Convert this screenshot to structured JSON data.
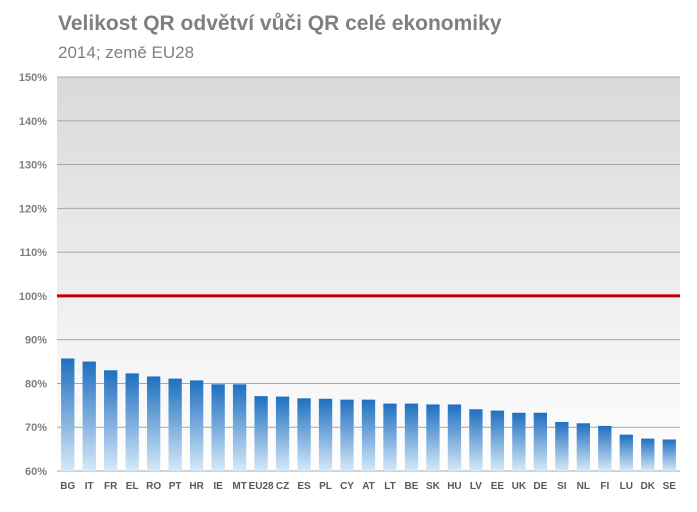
{
  "chart_data": {
    "type": "bar",
    "title": "Velikost QR odvětví vůči QR celé ekonomiky",
    "subtitle": "2014; země EU28",
    "xlabel": "",
    "ylabel": "",
    "categories": [
      "BG",
      "IT",
      "FR",
      "EL",
      "RO",
      "PT",
      "HR",
      "IE",
      "MT",
      "EU28",
      "CZ",
      "ES",
      "PL",
      "CY",
      "AT",
      "LT",
      "BE",
      "SK",
      "HU",
      "LV",
      "EE",
      "UK",
      "DE",
      "SI",
      "NL",
      "FI",
      "LU",
      "DK",
      "SE"
    ],
    "values": [
      85.7,
      85.0,
      83.0,
      82.3,
      81.6,
      81.1,
      80.7,
      79.8,
      79.8,
      77.1,
      77.0,
      76.6,
      76.5,
      76.3,
      76.3,
      75.4,
      75.4,
      75.2,
      75.2,
      74.1,
      73.8,
      73.3,
      73.3,
      71.2,
      70.9,
      70.3,
      68.3,
      67.4,
      67.2
    ],
    "ylim": [
      60,
      150
    ],
    "yticks": [
      60,
      70,
      80,
      90,
      100,
      110,
      120,
      130,
      140,
      150
    ],
    "ytick_labels": [
      "60%",
      "70%",
      "80%",
      "90%",
      "100%",
      "110%",
      "120%",
      "130%",
      "140%",
      "150%"
    ],
    "reference_line": {
      "value": 100,
      "color": "#c00000"
    },
    "bar_color_top": "#1f6fc0",
    "bar_color_bottom": "#d6e9f8",
    "plot_background_top": "#d9d9d9",
    "plot_background_bottom": "#ffffff",
    "grid": true,
    "legend": "none"
  }
}
